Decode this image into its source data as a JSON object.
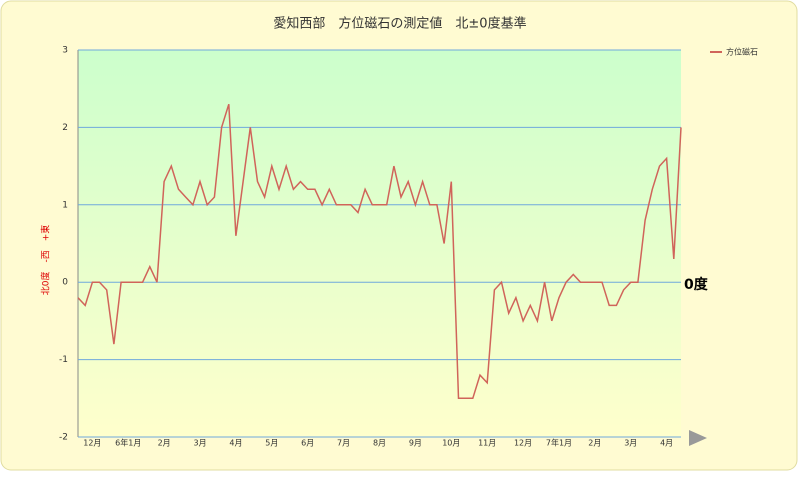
{
  "chart_data": {
    "type": "line",
    "title": "愛知西部　方位磁石の測定値　北±0度基準",
    "y_label": "北0度　-西　+東",
    "annotation": "0度",
    "categories": [
      null,
      null,
      "12月",
      null,
      null,
      null,
      null,
      "6年1月",
      null,
      null,
      null,
      null,
      "2月",
      null,
      null,
      null,
      null,
      "3月",
      null,
      null,
      null,
      null,
      "4月",
      null,
      null,
      null,
      null,
      "5月",
      null,
      null,
      null,
      null,
      "6月",
      null,
      null,
      null,
      null,
      "7月",
      null,
      null,
      null,
      null,
      "8月",
      null,
      null,
      null,
      null,
      "9月",
      null,
      null,
      null,
      null,
      "10月",
      null,
      null,
      null,
      null,
      "11月",
      null,
      null,
      null,
      null,
      "12月",
      null,
      null,
      null,
      null,
      "7年1月",
      null,
      null,
      null,
      null,
      "2月",
      null,
      null,
      null,
      null,
      "3月",
      null,
      null,
      null,
      null,
      "4月",
      null,
      null
    ],
    "series": [
      {
        "name": "方位磁石",
        "color": "#d0645a",
        "values": [
          -0.2,
          -0.3,
          0,
          0,
          -0.1,
          -0.8,
          0,
          0,
          0,
          0,
          0.2,
          0,
          1.3,
          1.5,
          1.2,
          1.1,
          1.0,
          1.3,
          1.0,
          1.1,
          2.0,
          2.3,
          0.6,
          1.3,
          2.0,
          1.3,
          1.1,
          1.5,
          1.2,
          1.5,
          1.2,
          1.3,
          1.2,
          1.2,
          1.0,
          1.2,
          1.0,
          1.0,
          1.0,
          0.9,
          1.2,
          1.0,
          1.0,
          1.0,
          1.5,
          1.1,
          1.3,
          1.0,
          1.3,
          1.0,
          1.0,
          0.5,
          1.3,
          -1.5,
          -1.5,
          -1.5,
          -1.2,
          -1.3,
          -0.1,
          0,
          -0.4,
          -0.2,
          -0.5,
          -0.3,
          -0.5,
          0,
          -0.5,
          -0.2,
          0,
          0.1,
          0,
          0,
          0,
          0,
          -0.3,
          -0.3,
          -0.1,
          0,
          0,
          0.8,
          1.2,
          1.5,
          1.6,
          0.3,
          2.0
        ]
      }
    ],
    "ylim": [
      -2,
      3
    ],
    "yticks": [
      3,
      2,
      1,
      0,
      -1,
      -2
    ],
    "grid": true,
    "legend": "top-right"
  }
}
